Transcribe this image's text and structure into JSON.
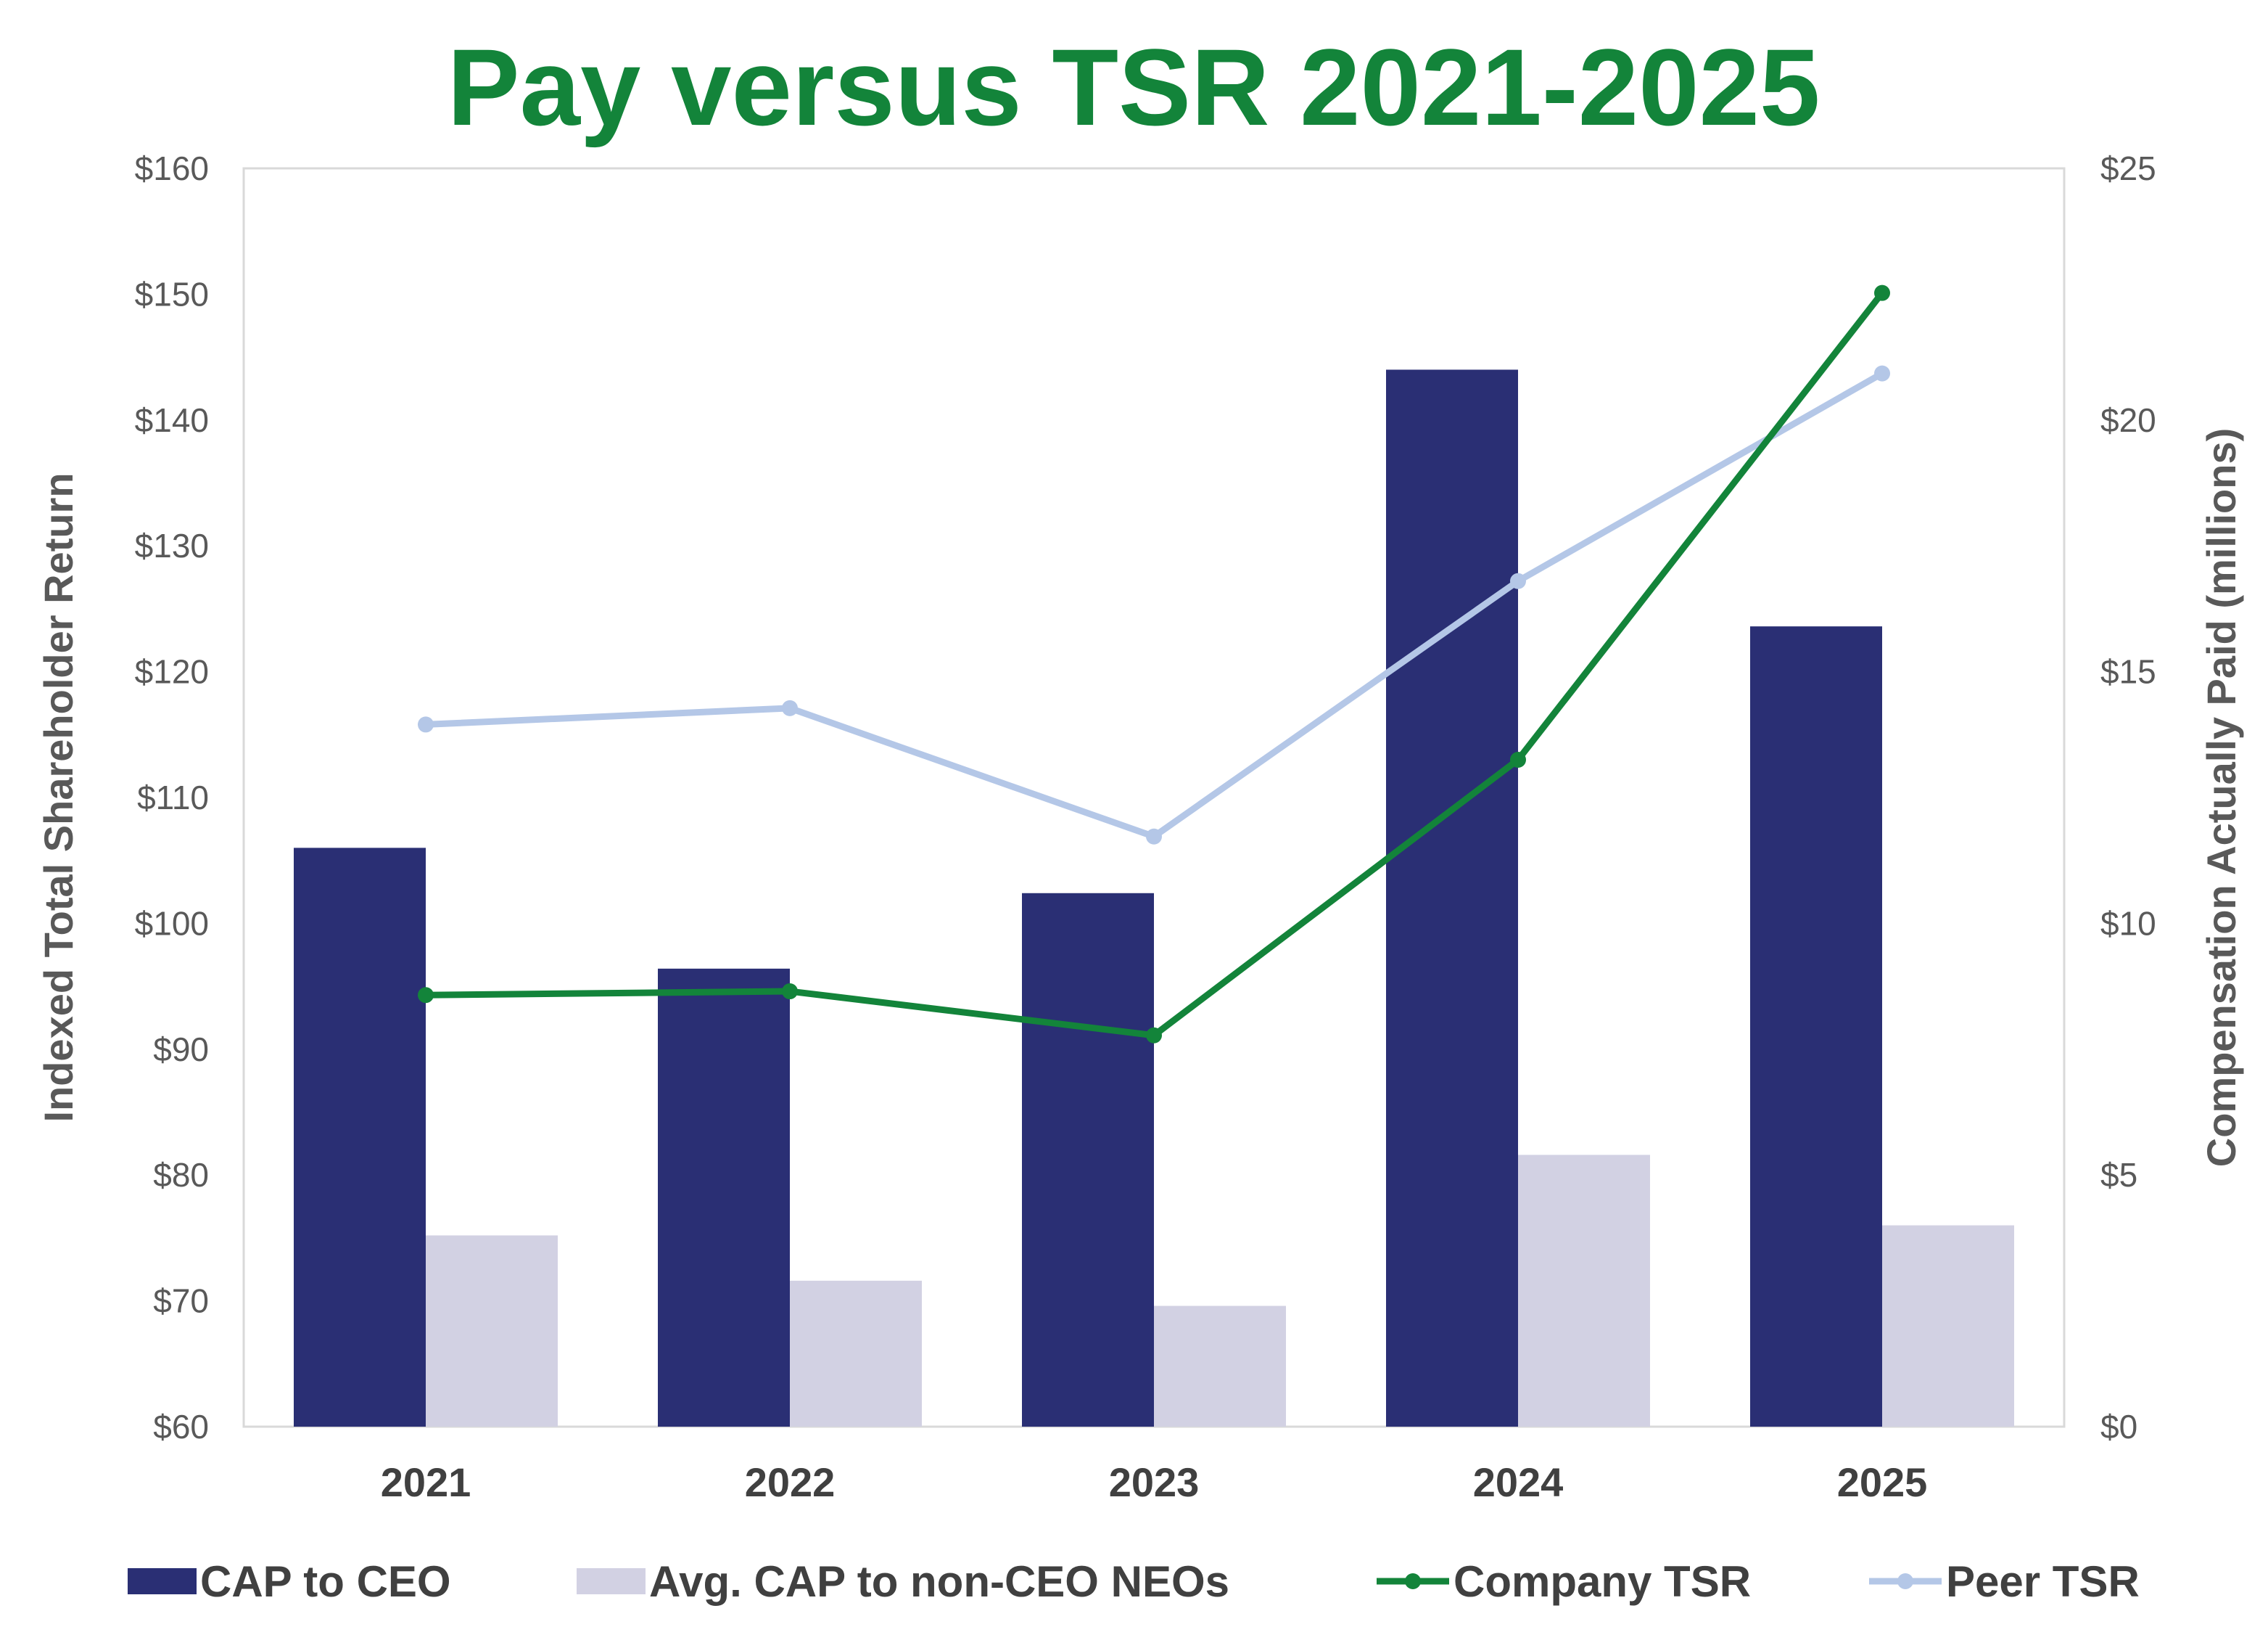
{
  "chart_data": {
    "type": "bar",
    "title": "Pay versus TSR 2021-2025",
    "title_color": "#13843A",
    "categories": [
      "2021",
      "2022",
      "2023",
      "2024",
      "2025"
    ],
    "y_left": {
      "label": "Indexed Total Shareholder Return",
      "ylim": [
        60,
        160
      ],
      "ticks": [
        60,
        70,
        80,
        90,
        100,
        110,
        120,
        130,
        140,
        150,
        160
      ],
      "tick_labels": [
        "$60",
        "$70",
        "$80",
        "$90",
        "$100",
        "$110",
        "$120",
        "$130",
        "$140",
        "$150",
        "$160"
      ]
    },
    "y_right": {
      "label": "Compensation Actually Paid (millions)",
      "ylim": [
        0,
        25
      ],
      "ticks": [
        0,
        5,
        10,
        15,
        20,
        25
      ],
      "tick_labels": [
        "$0",
        "$5",
        "$10",
        "$15",
        "$20",
        "$25"
      ]
    },
    "series": [
      {
        "name": "CAP to CEO",
        "kind": "bar",
        "axis": "right",
        "color": "#2A2F74",
        "values": [
          11.5,
          9.1,
          10.6,
          21.0,
          15.9
        ]
      },
      {
        "name": "Avg. CAP to non-CEO NEOs",
        "kind": "bar",
        "axis": "right",
        "color": "#D2D1E3",
        "values": [
          3.8,
          2.9,
          2.4,
          5.4,
          4.0
        ]
      },
      {
        "name": "Company TSR",
        "kind": "line",
        "axis": "left",
        "color": "#13843A",
        "values": [
          94.3,
          94.6,
          91.1,
          113.0,
          150.1
        ]
      },
      {
        "name": "Peer TSR",
        "kind": "line",
        "axis": "left",
        "color": "#B4C7E7",
        "values": [
          115.8,
          117.1,
          106.9,
          127.2,
          143.7
        ]
      }
    ],
    "grid": false,
    "legend_position": "bottom"
  }
}
